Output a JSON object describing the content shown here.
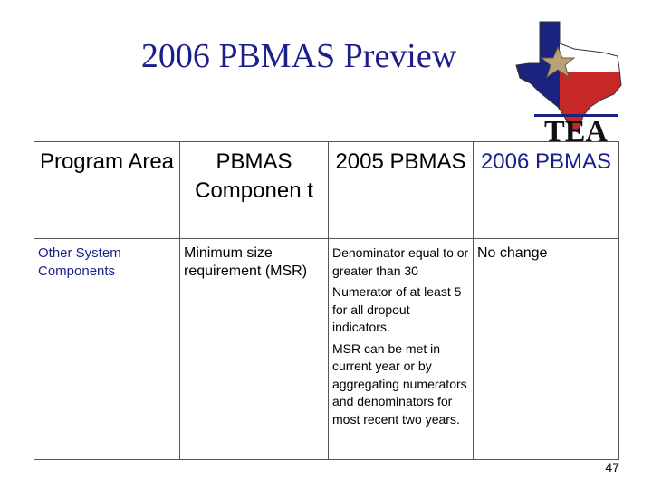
{
  "slide": {
    "title": "2006 PBMAS Preview",
    "logo_text": "TEA",
    "page_number": "47"
  },
  "table": {
    "headers": {
      "program_area": "Program Area",
      "component": "PBMAS Componen t",
      "pbmas_2005": "2005 PBMAS",
      "pbmas_2006": "2006 PBMAS"
    },
    "row": {
      "program_area": "Other System Components",
      "component": "Minimum size requirement (MSR)",
      "pbmas_2005": [
        "Denominator equal to or greater than 30",
        "Numerator of at least 5 for all dropout indicators.",
        "MSR can be met in current year or by aggregating numerators and denominators for most recent two years."
      ],
      "pbmas_2006": "No change"
    }
  },
  "colors": {
    "title": "#1a1f8c",
    "texas_blue": "#1a237e",
    "texas_red": "#c62828"
  }
}
